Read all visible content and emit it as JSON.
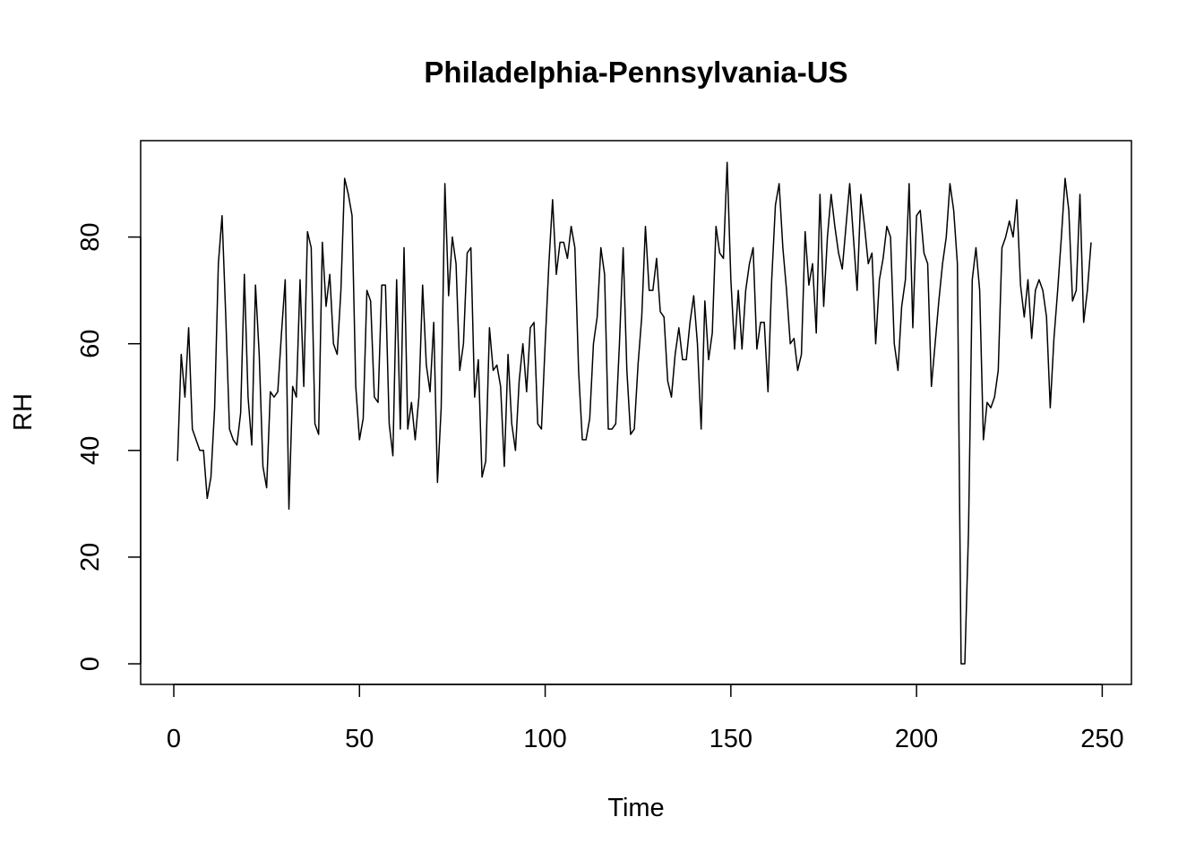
{
  "chart_data": {
    "type": "line",
    "title": "Philadelphia-Pennsylvania-US",
    "xlabel": "Time",
    "ylabel": "RH",
    "xlim": [
      1,
      248
    ],
    "ylim": [
      0,
      94
    ],
    "grid": false,
    "box": true,
    "x_ticks": [
      0,
      50,
      100,
      150,
      200,
      250
    ],
    "y_ticks": [
      0,
      20,
      40,
      60,
      80
    ],
    "line_color": "#000000",
    "x_start": 1,
    "values": [
      38,
      58,
      50,
      63,
      44,
      42,
      40,
      40,
      31,
      35,
      48,
      75,
      84,
      65,
      44,
      42,
      41,
      47,
      73,
      50,
      41,
      71,
      58,
      37,
      33,
      51,
      50,
      51,
      62,
      72,
      29,
      52,
      50,
      72,
      52,
      81,
      78,
      45,
      43,
      79,
      67,
      73,
      60,
      58,
      70,
      91,
      88,
      84,
      52,
      42,
      46,
      70,
      68,
      50,
      49,
      71,
      71,
      45,
      39,
      72,
      44,
      78,
      44,
      49,
      42,
      50,
      71,
      56,
      51,
      64,
      34,
      48,
      90,
      69,
      80,
      75,
      55,
      60,
      77,
      78,
      50,
      57,
      35,
      38,
      63,
      55,
      56,
      52,
      37,
      58,
      45,
      40,
      53,
      60,
      51,
      63,
      64,
      45,
      44,
      60,
      75,
      87,
      73,
      79,
      79,
      76,
      82,
      78,
      55,
      42,
      42,
      46,
      60,
      65,
      78,
      73,
      44,
      44,
      45,
      60,
      78,
      55,
      43,
      44,
      56,
      65,
      82,
      70,
      70,
      76,
      66,
      65,
      53,
      50,
      58,
      63,
      57,
      57,
      64,
      69,
      60,
      44,
      68,
      57,
      62,
      82,
      77,
      76,
      94,
      72,
      59,
      70,
      59,
      70,
      75,
      78,
      59,
      64,
      64,
      51,
      72,
      86,
      90,
      78,
      70,
      60,
      61,
      55,
      58,
      81,
      71,
      75,
      62,
      88,
      67,
      80,
      88,
      82,
      77,
      74,
      82,
      90,
      80,
      70,
      88,
      82,
      75,
      77,
      60,
      72,
      76,
      82,
      80,
      60,
      55,
      67,
      72,
      90,
      63,
      84,
      85,
      77,
      75,
      52,
      60,
      68,
      75,
      80,
      90,
      85,
      75,
      0,
      0,
      25,
      72,
      78,
      70,
      42,
      49,
      48,
      50,
      55,
      78,
      80,
      83,
      80,
      87,
      71,
      65,
      72,
      61,
      70,
      72,
      70,
      65,
      48,
      61,
      70,
      80,
      91,
      85,
      68,
      70,
      88,
      64,
      70,
      79
    ]
  }
}
